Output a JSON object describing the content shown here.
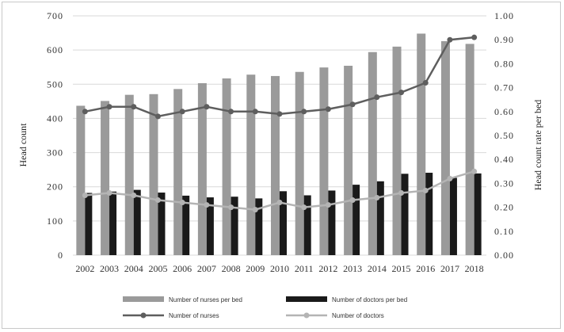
{
  "chart_data": {
    "type": "bar",
    "categories": [
      "2002",
      "2003",
      "2004",
      "2005",
      "2006",
      "2007",
      "2008",
      "2009",
      "2010",
      "2011",
      "2012",
      "2013",
      "2014",
      "2015",
      "2016",
      "2017",
      "2018"
    ],
    "y_left": {
      "label": "Head count",
      "range": [
        0,
        700
      ],
      "ticks": [
        "0",
        "100",
        "200",
        "300",
        "400",
        "500",
        "600",
        "700"
      ]
    },
    "y_right": {
      "label": "Head count rate per bed",
      "range": [
        0,
        1.0
      ],
      "ticks": [
        "0.00",
        "0.10",
        "0.20",
        "0.30",
        "0.40",
        "0.50",
        "0.60",
        "0.70",
        "0.80",
        "0.90",
        "1.00"
      ]
    },
    "series": [
      {
        "name": "Number of nurses per bed",
        "kind": "bar",
        "axis": "left",
        "color": "#9a9a9a",
        "values": [
          437,
          451,
          469,
          471,
          486,
          503,
          517,
          528,
          524,
          536,
          549,
          554,
          594,
          610,
          648,
          626,
          618
        ]
      },
      {
        "name": "Number of doctors per bed",
        "kind": "bar",
        "axis": "left",
        "color": "#1a1a1a",
        "values": [
          182,
          186,
          191,
          183,
          174,
          169,
          171,
          166,
          187,
          175,
          189,
          206,
          216,
          238,
          241,
          226,
          239
        ]
      },
      {
        "name": "Number of nurses",
        "kind": "line",
        "axis": "right",
        "color": "#5e5e5e",
        "values": [
          0.6,
          0.62,
          0.62,
          0.58,
          0.6,
          0.62,
          0.6,
          0.6,
          0.59,
          0.6,
          0.61,
          0.63,
          0.66,
          0.68,
          0.72,
          0.9,
          0.91
        ]
      },
      {
        "name": "Number of doctors",
        "kind": "line",
        "axis": "right",
        "color": "#b4b4b4",
        "values": [
          0.25,
          0.26,
          0.25,
          0.23,
          0.22,
          0.21,
          0.2,
          0.19,
          0.22,
          0.2,
          0.21,
          0.23,
          0.24,
          0.26,
          0.27,
          0.32,
          0.35
        ]
      }
    ],
    "legend": {
      "placement": "bottom",
      "items": [
        {
          "label": "Number of nurses per bed",
          "symbol": "bar",
          "color": "#9a9a9a"
        },
        {
          "label": "Number of doctors per bed",
          "symbol": "bar",
          "color": "#1a1a1a"
        },
        {
          "label": "Number of nurses",
          "symbol": "line",
          "color": "#5e5e5e"
        },
        {
          "label": "Number of doctors",
          "symbol": "line",
          "color": "#b4b4b4"
        }
      ]
    },
    "grid": true
  }
}
